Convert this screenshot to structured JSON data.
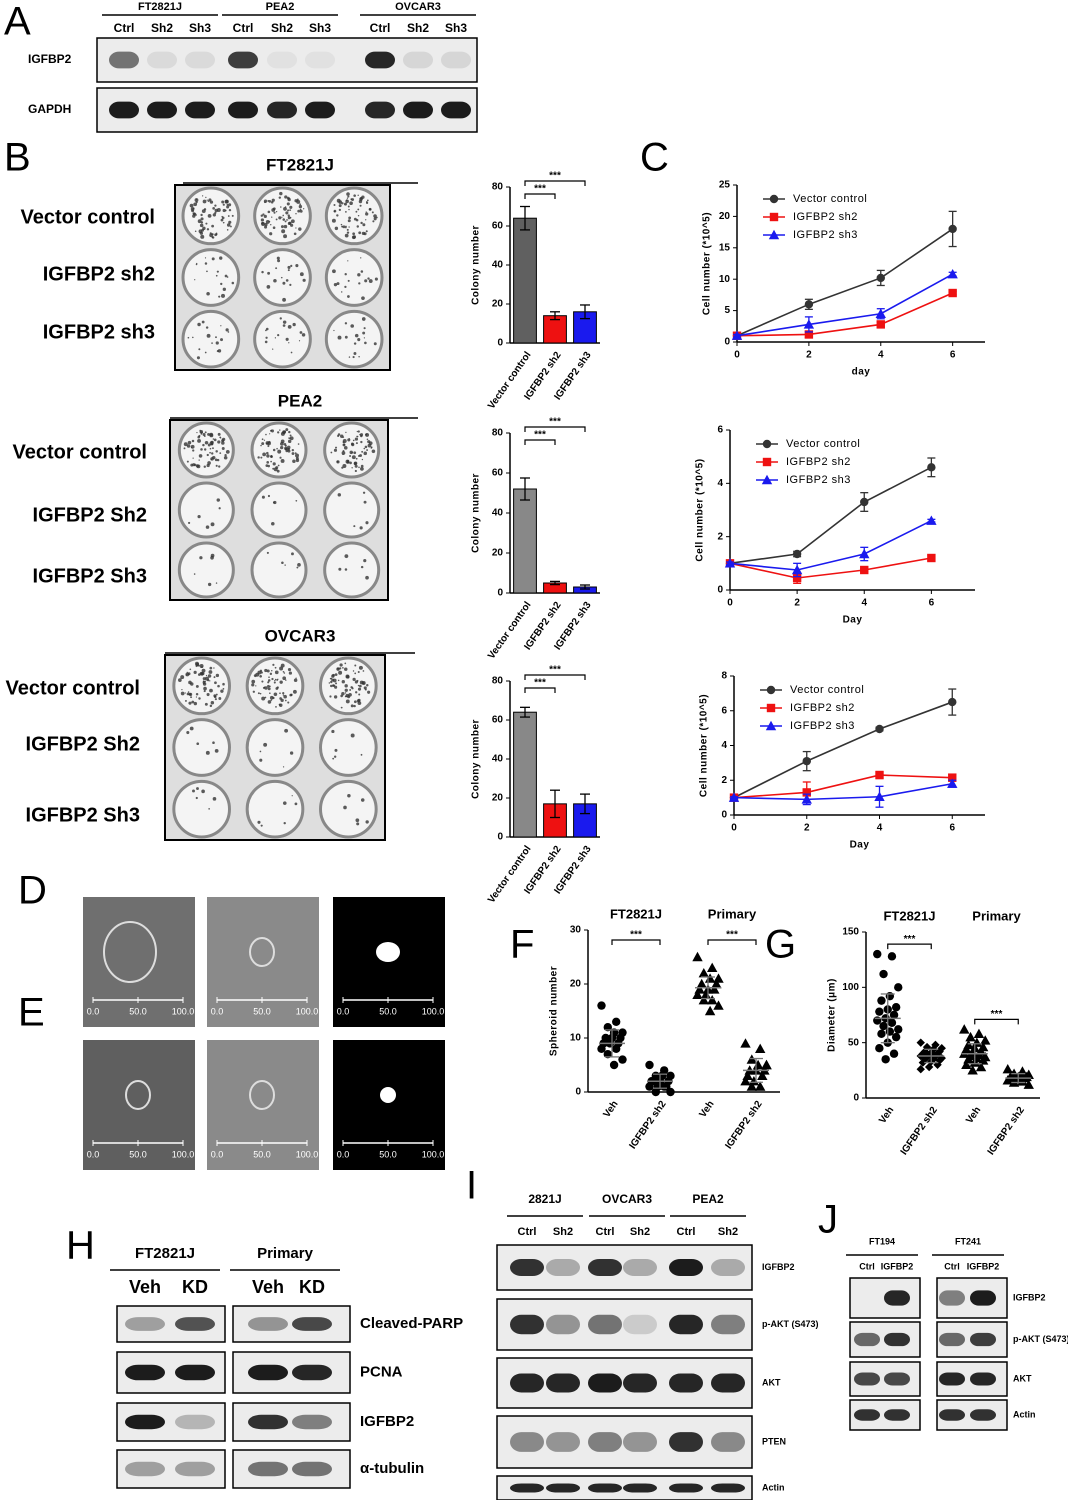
{
  "panel_letters": [
    "A",
    "B",
    "C",
    "D",
    "E",
    "F",
    "G",
    "H",
    "I",
    "J"
  ],
  "blot_a": {
    "groups": [
      "FT2821J",
      "PEA2",
      "OVCAR3"
    ],
    "lanes": [
      "Ctrl",
      "Sh2",
      "Sh3"
    ],
    "rows": [
      "IGFBP2",
      "GAPDH"
    ]
  },
  "colony_b": [
    {
      "cell_line": "FT2821J",
      "rows": [
        "Vector control",
        "IGFBP2 sh2",
        "IGFBP2 sh3"
      ]
    },
    {
      "cell_line": "PEA2",
      "rows": [
        "Vector control",
        "IGFBP2 Sh2",
        "IGFBP2 Sh3"
      ]
    },
    {
      "cell_line": "OVCAR3",
      "rows": [
        "Vector control",
        "IGFBP2 Sh2",
        "IGFBP2 Sh3"
      ]
    }
  ],
  "scale_bar_labels": [
    "0.0",
    "50.0",
    "100.0"
  ],
  "blot_h": {
    "groups": [
      "FT2821J",
      "Primary"
    ],
    "lanes": [
      "Veh",
      "KD"
    ],
    "rows": [
      "Cleaved-PARP",
      "PCNA",
      "IGFBP2",
      "α-tubulin"
    ]
  },
  "blot_i": {
    "groups": [
      "2821J",
      "OVCAR3",
      "PEA2"
    ],
    "lanes": [
      "Ctrl",
      "Sh2"
    ],
    "rows": [
      "IGFBP2",
      "p-AKT (S473)",
      "AKT",
      "PTEN",
      "Actin"
    ]
  },
  "blot_j": {
    "groups": [
      "FT194",
      "FT241"
    ],
    "lanes": [
      "Ctrl",
      "IGFBP2"
    ],
    "rows": [
      "IGFBP2",
      "p-AKT (S473)",
      "AKT",
      "Actin"
    ]
  },
  "chart_data": [
    {
      "type": "bar",
      "ylabel": "Colony number",
      "categories": [
        "Vector control",
        "IGFBP2 sh2",
        "IGFBP2 sh3"
      ],
      "values": [
        64,
        14,
        16
      ],
      "errors": [
        6,
        2,
        3.5
      ],
      "colors": [
        "#606060",
        "#ee1111",
        "#1a1aee"
      ],
      "ylim": [
        0,
        80
      ],
      "yticks": [
        0,
        20,
        40,
        60,
        80
      ],
      "significance": [
        "***",
        "***"
      ]
    },
    {
      "type": "bar",
      "ylabel": "Colony number",
      "categories": [
        "Vector control",
        "IGFBP2 sh2",
        "IGFBP2 sh3"
      ],
      "values": [
        52,
        5,
        3
      ],
      "errors": [
        5.5,
        0.8,
        1
      ],
      "colors": [
        "#888888",
        "#ee1111",
        "#1a1aee"
      ],
      "ylim": [
        0,
        80
      ],
      "yticks": [
        0,
        20,
        40,
        60,
        80
      ],
      "significance": [
        "***",
        "***"
      ]
    },
    {
      "type": "bar",
      "ylabel": "Colony number",
      "categories": [
        "Vector control",
        "IGFBP2 sh2",
        "IGFBP2 sh3"
      ],
      "values": [
        64,
        17,
        17
      ],
      "errors": [
        2.5,
        7,
        5
      ],
      "colors": [
        "#888888",
        "#ee1111",
        "#1a1aee"
      ],
      "ylim": [
        0,
        80
      ],
      "yticks": [
        0,
        20,
        40,
        60,
        80
      ],
      "significance": [
        "***",
        "***"
      ]
    },
    {
      "type": "line",
      "xlabel": "day",
      "ylabel": "Cell number (*10^5)",
      "x": [
        0,
        2,
        4,
        6
      ],
      "xlim": [
        0,
        6.9
      ],
      "xticks": [
        0,
        2,
        4,
        6
      ],
      "ylim": [
        0,
        25
      ],
      "yticks": [
        0,
        5,
        10,
        15,
        20,
        25
      ],
      "legend": "upper left",
      "series": [
        {
          "name": "Vector control",
          "color": "#333333",
          "marker": "circle",
          "values": [
            1,
            6,
            10.2,
            18
          ],
          "errors": [
            0.3,
            0.8,
            1.2,
            2.8
          ]
        },
        {
          "name": "IGFBP2 sh2",
          "color": "#ee1111",
          "marker": "square",
          "values": [
            1,
            1.2,
            2.8,
            7.8
          ],
          "errors": [
            0.2,
            0.5,
            0.4,
            0.3
          ]
        },
        {
          "name": "IGFBP2 sh3",
          "color": "#1a1aee",
          "marker": "triangle",
          "values": [
            1,
            2.8,
            4.5,
            10.8
          ],
          "errors": [
            0.2,
            1.2,
            0.8,
            0.3
          ]
        }
      ]
    },
    {
      "type": "line",
      "xlabel": "Day",
      "ylabel": "Cell number (*10^5)",
      "x": [
        0,
        2,
        4,
        6
      ],
      "xlim": [
        0,
        7.3
      ],
      "xticks": [
        0,
        2,
        4,
        6
      ],
      "ylim": [
        0,
        6
      ],
      "yticks": [
        0,
        2,
        4,
        6
      ],
      "legend": "upper left",
      "series": [
        {
          "name": "Vector control",
          "color": "#333333",
          "marker": "circle",
          "values": [
            1,
            1.35,
            3.3,
            4.6
          ],
          "errors": [
            0.05,
            0.1,
            0.35,
            0.35
          ]
        },
        {
          "name": "IGFBP2 sh2",
          "color": "#ee1111",
          "marker": "square",
          "values": [
            1,
            0.45,
            0.75,
            1.2
          ],
          "errors": [
            0.05,
            0.2,
            0.05,
            0.1
          ]
        },
        {
          "name": "IGFBP2 sh3",
          "color": "#1a1aee",
          "marker": "triangle",
          "values": [
            1,
            0.75,
            1.35,
            2.6
          ],
          "errors": [
            0.05,
            0.25,
            0.25,
            0.05
          ]
        }
      ]
    },
    {
      "type": "line",
      "xlabel": "Day",
      "ylabel": "Cell number (*10^5)",
      "x": [
        0,
        2,
        4,
        6
      ],
      "xlim": [
        0,
        6.9
      ],
      "xticks": [
        0,
        2,
        4,
        6
      ],
      "ylim": [
        0,
        8
      ],
      "yticks": [
        0,
        2,
        4,
        6,
        8
      ],
      "legend": "upper left",
      "series": [
        {
          "name": "Vector control",
          "color": "#333333",
          "marker": "circle",
          "values": [
            1,
            3.1,
            4.95,
            6.5
          ],
          "errors": [
            0.05,
            0.55,
            0.1,
            0.75
          ]
        },
        {
          "name": "IGFBP2 sh2",
          "color": "#ee1111",
          "marker": "square",
          "values": [
            1,
            1.3,
            2.3,
            2.15
          ],
          "errors": [
            0.05,
            0.6,
            0.2,
            0.2
          ]
        },
        {
          "name": "IGFBP2 sh3",
          "color": "#1a1aee",
          "marker": "triangle",
          "values": [
            1,
            0.9,
            1.05,
            1.8
          ],
          "errors": [
            0.05,
            0.3,
            0.6,
            0.2
          ]
        }
      ]
    },
    {
      "type": "dot",
      "ylabel": "Spheroid number",
      "group_labels": [
        "FT2821J",
        "Primary"
      ],
      "categories": [
        "Veh",
        "IGFBP2 sh2",
        "Veh",
        "IGFBP2 sh2"
      ],
      "markers": [
        "circle",
        "circle",
        "triangle",
        "triangle"
      ],
      "points": [
        [
          16,
          13,
          12,
          11,
          11,
          10,
          10,
          10,
          9,
          9,
          9,
          8,
          8,
          7,
          6,
          5
        ],
        [
          5,
          4,
          3,
          3,
          3,
          2,
          2,
          2,
          2,
          1,
          1,
          1,
          1,
          0,
          0,
          3
        ],
        [
          25,
          23,
          22,
          21,
          21,
          20,
          20,
          19,
          19,
          19,
          18,
          18,
          17,
          17,
          16,
          15
        ],
        [
          9,
          8,
          6,
          5,
          5,
          4,
          4,
          4,
          3,
          3,
          2,
          2,
          1,
          1,
          5
        ]
      ],
      "means": [
        9,
        2,
        19.3,
        4
      ],
      "errors": [
        2.5,
        1.3,
        2,
        2.2
      ],
      "ylim": [
        0,
        30
      ],
      "yticks": [
        0,
        10,
        20,
        30
      ],
      "significance": [
        "***",
        "***"
      ]
    },
    {
      "type": "dot",
      "ylabel": "Diameter (μm)",
      "group_labels": [
        "FT2821J",
        "Primary"
      ],
      "categories": [
        "Veh",
        "IGFBP2 sh2",
        "Veh",
        "IGFBP2 sh2"
      ],
      "markers": [
        "circle",
        "diamond",
        "triangle",
        "triangle"
      ],
      "points": [
        [
          130,
          128,
          112,
          100,
          92,
          88,
          82,
          80,
          78,
          75,
          72,
          70,
          68,
          65,
          62,
          60,
          58,
          55,
          50,
          45,
          40,
          35
        ],
        [
          50,
          48,
          46,
          45,
          44,
          42,
          42,
          41,
          40,
          40,
          39,
          38,
          38,
          37,
          36,
          35,
          35,
          34,
          33,
          32,
          30,
          28,
          26
        ],
        [
          62,
          58,
          55,
          52,
          50,
          48,
          46,
          45,
          44,
          42,
          41,
          40,
          39,
          38,
          37,
          36,
          35,
          34,
          32,
          30,
          28,
          25
        ],
        [
          26,
          24,
          22,
          21,
          20,
          20,
          19,
          19,
          18,
          18,
          17,
          16,
          15,
          14,
          12
        ]
      ],
      "means": [
        72,
        38,
        40,
        18
      ],
      "errors": [
        22,
        6,
        9,
        4
      ],
      "ylim": [
        0,
        150
      ],
      "yticks": [
        0,
        50,
        100,
        150
      ],
      "significance": [
        "***",
        "***"
      ]
    }
  ]
}
